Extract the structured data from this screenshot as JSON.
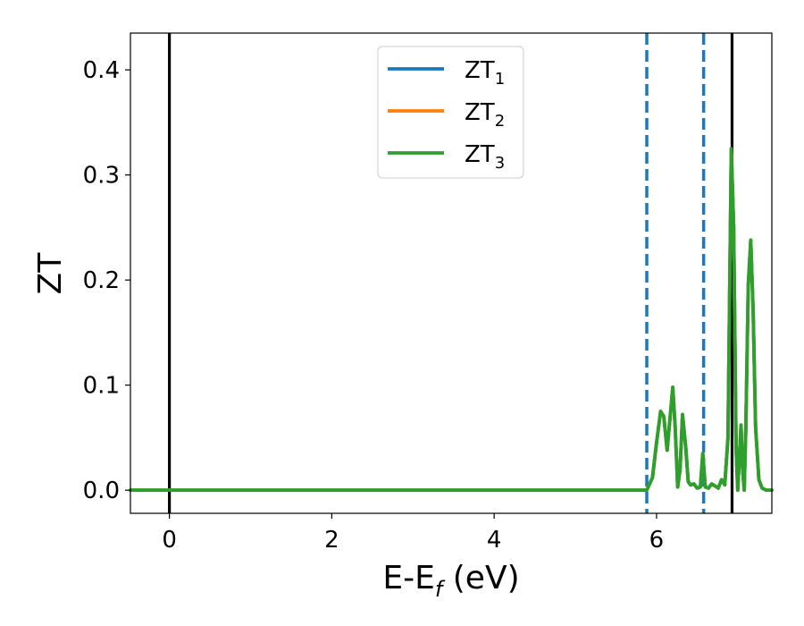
{
  "chart_data": {
    "type": "line",
    "xlabel": {
      "main": "E-E",
      "sub": "f",
      "suffix": " (eV)"
    },
    "ylabel": "ZT",
    "xlim": [
      -0.48,
      7.42
    ],
    "ylim": [
      -0.022,
      0.435
    ],
    "xticks": [
      0,
      2,
      4,
      6
    ],
    "xtick_labels": [
      "0",
      "2",
      "4",
      "6"
    ],
    "yticks": [
      0.0,
      0.1,
      0.2,
      0.3,
      0.4
    ],
    "ytick_labels": [
      "0.0",
      "0.1",
      "0.2",
      "0.3",
      "0.4"
    ],
    "grid": false,
    "legend_position": "top-center",
    "vertical_lines": [
      {
        "x": 0.0,
        "style": "solid",
        "color": "#000000"
      },
      {
        "x": 5.88,
        "style": "dashed",
        "color": "#1f77b4"
      },
      {
        "x": 6.58,
        "style": "dashed",
        "color": "#1f77b4"
      },
      {
        "x": 6.93,
        "style": "solid",
        "color": "#000000"
      }
    ],
    "series": [
      {
        "name": "ZT",
        "name_sub": "1",
        "color": "#1f77b4",
        "x": [
          -0.48,
          5.88,
          5.95,
          6.0,
          6.05,
          6.09,
          6.13,
          6.17,
          6.2,
          6.23,
          6.26,
          6.29,
          6.32,
          6.36,
          6.39,
          6.42,
          6.46,
          6.5,
          6.54,
          6.57,
          6.6,
          6.64,
          6.68,
          6.72,
          6.76,
          6.8,
          6.84,
          6.88,
          6.92,
          6.95,
          6.98,
          7.0,
          7.02,
          7.04,
          7.06,
          7.08,
          7.1,
          7.13,
          7.16,
          7.19,
          7.22,
          7.26,
          7.3,
          7.35,
          7.42
        ],
        "y": [
          0.0,
          0.0,
          0.012,
          0.045,
          0.075,
          0.07,
          0.038,
          0.072,
          0.098,
          0.06,
          0.003,
          0.02,
          0.072,
          0.04,
          0.008,
          0.005,
          0.006,
          0.002,
          0.003,
          0.035,
          0.003,
          0.002,
          0.006,
          0.004,
          0.002,
          0.01,
          0.005,
          0.05,
          0.325,
          0.25,
          0.04,
          0.0,
          0.03,
          0.062,
          0.02,
          0.0,
          0.06,
          0.195,
          0.238,
          0.17,
          0.06,
          0.01,
          0.002,
          0.0,
          0.0
        ]
      },
      {
        "name": "ZT",
        "name_sub": "2",
        "color": "#ff7f0e",
        "x": [
          -0.48,
          5.88,
          5.95,
          6.0,
          6.05,
          6.09,
          6.13,
          6.17,
          6.2,
          6.23,
          6.26,
          6.29,
          6.32,
          6.36,
          6.39,
          6.42,
          6.46,
          6.5,
          6.54,
          6.57,
          6.6,
          6.64,
          6.68,
          6.72,
          6.76,
          6.8,
          6.84,
          6.88,
          6.92,
          6.95,
          6.98,
          7.0,
          7.02,
          7.04,
          7.06,
          7.08,
          7.1,
          7.13,
          7.16,
          7.19,
          7.22,
          7.26,
          7.3,
          7.35,
          7.42
        ],
        "y": [
          0.0,
          0.0,
          0.012,
          0.045,
          0.075,
          0.07,
          0.038,
          0.072,
          0.098,
          0.06,
          0.003,
          0.02,
          0.072,
          0.04,
          0.008,
          0.005,
          0.006,
          0.002,
          0.003,
          0.035,
          0.003,
          0.002,
          0.006,
          0.004,
          0.002,
          0.01,
          0.005,
          0.05,
          0.325,
          0.25,
          0.04,
          0.0,
          0.03,
          0.062,
          0.02,
          0.0,
          0.06,
          0.195,
          0.238,
          0.17,
          0.06,
          0.01,
          0.002,
          0.0,
          0.0
        ]
      },
      {
        "name": "ZT",
        "name_sub": "3",
        "color": "#2ca02c",
        "x": [
          -0.48,
          5.88,
          5.95,
          6.0,
          6.05,
          6.09,
          6.13,
          6.17,
          6.2,
          6.23,
          6.26,
          6.29,
          6.32,
          6.36,
          6.39,
          6.42,
          6.46,
          6.5,
          6.54,
          6.57,
          6.6,
          6.64,
          6.68,
          6.72,
          6.76,
          6.8,
          6.84,
          6.88,
          6.92,
          6.95,
          6.98,
          7.0,
          7.02,
          7.04,
          7.06,
          7.08,
          7.1,
          7.13,
          7.16,
          7.19,
          7.22,
          7.26,
          7.3,
          7.35,
          7.42
        ],
        "y": [
          0.0,
          0.0,
          0.012,
          0.045,
          0.075,
          0.07,
          0.038,
          0.072,
          0.098,
          0.06,
          0.003,
          0.02,
          0.072,
          0.04,
          0.008,
          0.005,
          0.006,
          0.002,
          0.003,
          0.035,
          0.003,
          0.002,
          0.006,
          0.004,
          0.002,
          0.01,
          0.005,
          0.05,
          0.325,
          0.25,
          0.04,
          0.0,
          0.03,
          0.062,
          0.02,
          0.0,
          0.06,
          0.195,
          0.238,
          0.17,
          0.06,
          0.01,
          0.002,
          0.0,
          0.0
        ]
      }
    ]
  }
}
